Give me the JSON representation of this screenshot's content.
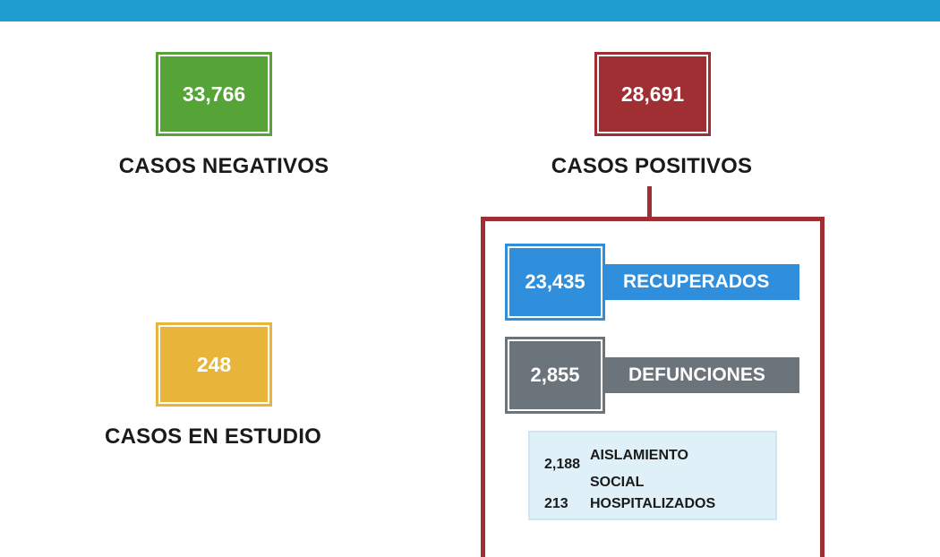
{
  "casos_negativos": {
    "value": "33,766",
    "label": "CASOS NEGATIVOS",
    "color": "#56a337"
  },
  "casos_positivos": {
    "value": "28,691",
    "label": "CASOS POSITIVOS",
    "color": "#a02f33"
  },
  "casos_en_estudio": {
    "value": "248",
    "label": "CASOS EN ESTUDIO",
    "color": "#e8b43a"
  },
  "recuperados": {
    "value": "23,435",
    "label": "RECUPERADOS",
    "color": "#2f8fdc"
  },
  "defunciones": {
    "value": "2,855",
    "label": "DEFUNCIONES",
    "color": "#6b737b"
  },
  "activos": {
    "aislamiento": {
      "value": "2,188",
      "label": "AISLAMIENTO SOCIAL"
    },
    "hospitalizados": {
      "value": "213",
      "label": "HOSPITALIZADOS"
    }
  },
  "header_color": "#1f9dd0"
}
